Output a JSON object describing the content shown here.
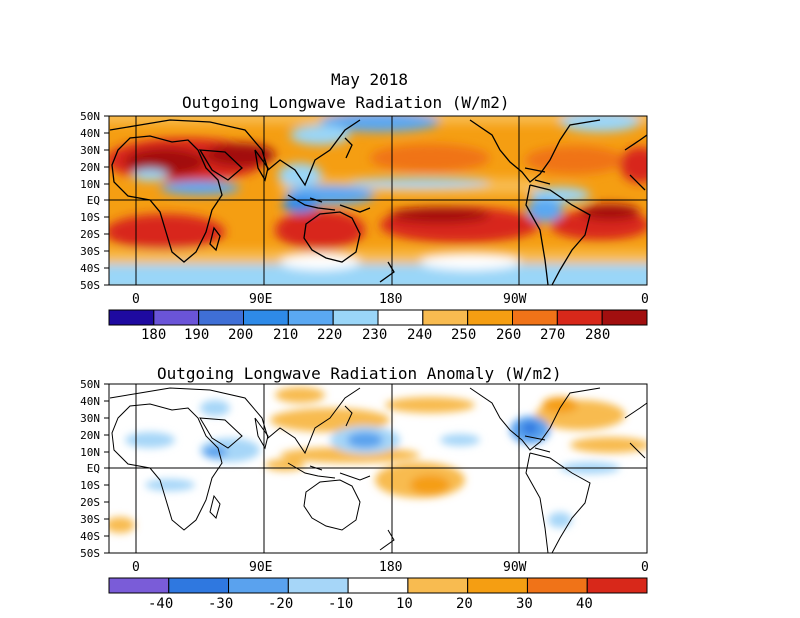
{
  "header": {
    "line1": "May 2018",
    "line2": "Outgoing Longwave Radiation (W/m2)"
  },
  "anomaly_title": "Outgoing Longwave Radiation Anomaly (W/m2)",
  "lat_labels": [
    "50N",
    "40N",
    "30N",
    "20N",
    "10N",
    "EQ",
    "10S",
    "20S",
    "30S",
    "40S",
    "50S"
  ],
  "lon_labels": [
    "0",
    "90E",
    "180",
    "90W",
    "0"
  ],
  "colorbar_top": {
    "labels": [
      "180",
      "190",
      "200",
      "210",
      "220",
      "230",
      "240",
      "250",
      "260",
      "270",
      "280"
    ],
    "colors": [
      "#1e0aa0",
      "#6a54d8",
      "#3f6fd6",
      "#2e8ae8",
      "#5aa8f2",
      "#9ad6f8",
      "#ffffff",
      "#f8bb50",
      "#f59e12",
      "#f07318",
      "#d8281a",
      "#a20f0f"
    ]
  },
  "colorbar_bottom": {
    "labels": [
      "-40",
      "-30",
      "-20",
      "-10",
      "10",
      "20",
      "30",
      "40"
    ],
    "colors": [
      "#7a5cd8",
      "#2f78e0",
      "#5aa2ee",
      "#a6d6f8",
      "#ffffff",
      "#f8bb50",
      "#f59e12",
      "#f07318",
      "#d8281a"
    ]
  }
}
